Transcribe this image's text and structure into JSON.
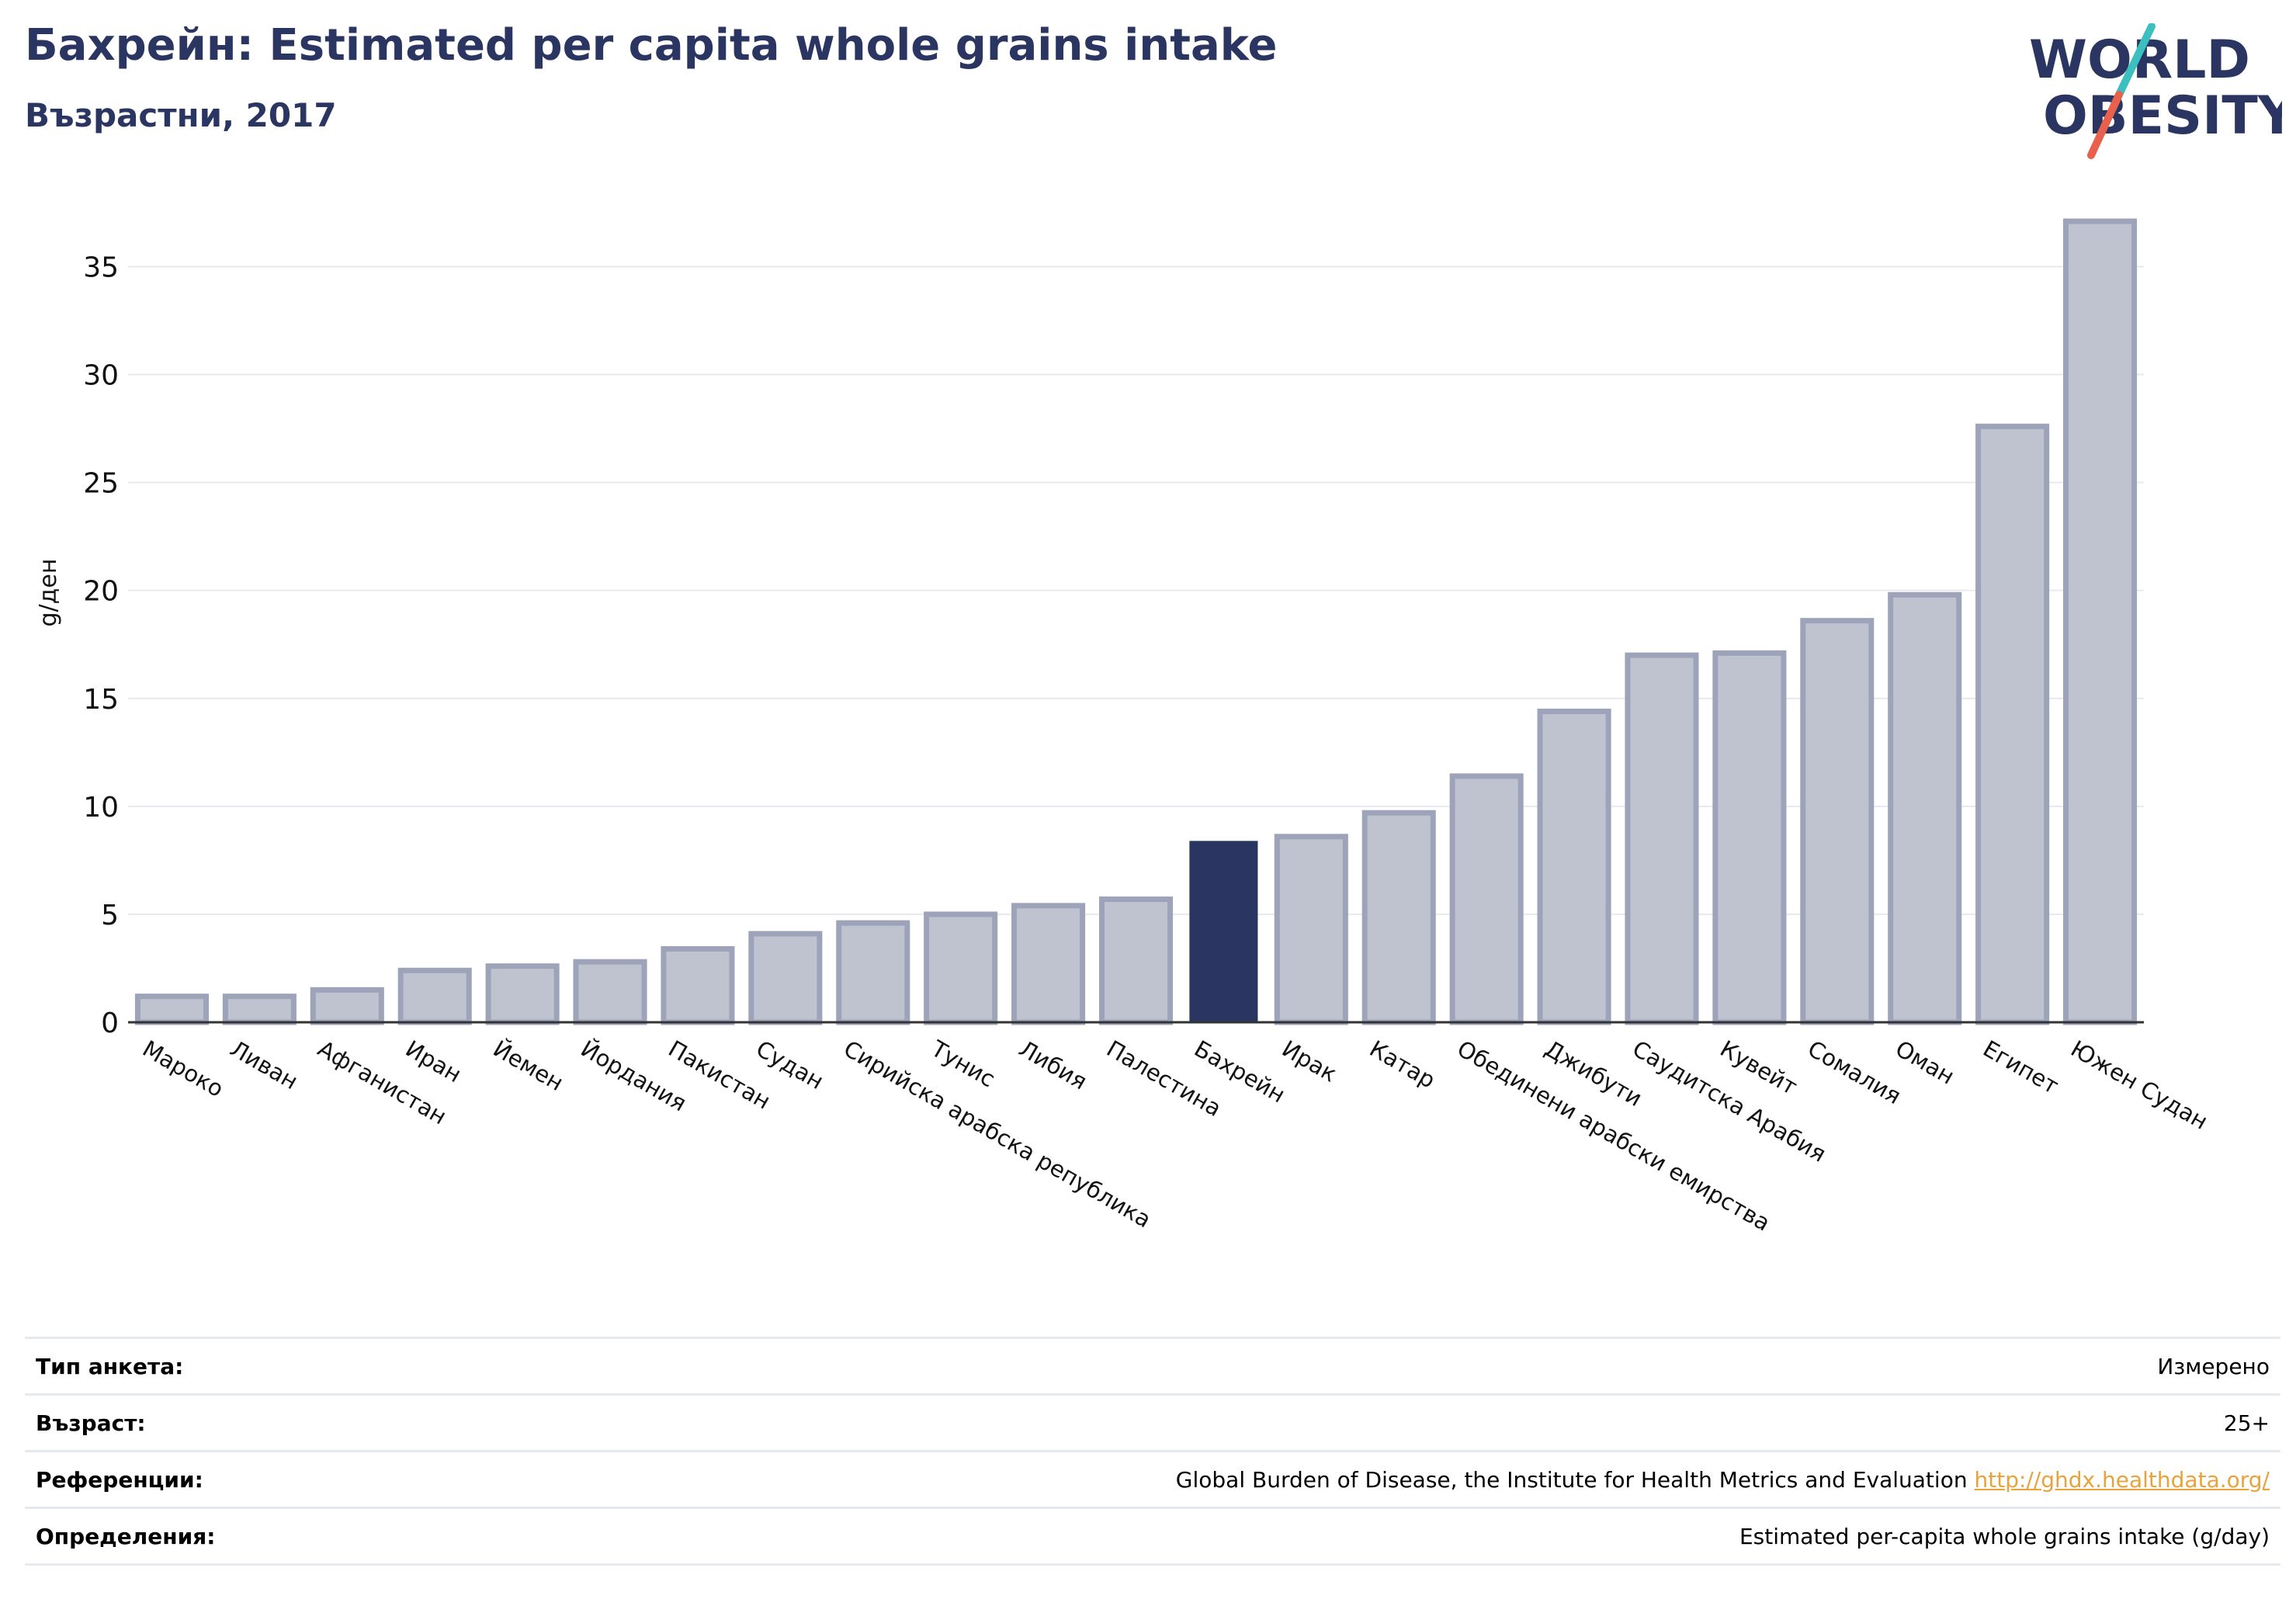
{
  "header": {
    "title": "Бахрейн: Estimated per capita whole grains intake",
    "subtitle": "Възрастни, 2017"
  },
  "logo": {
    "line1": "WORLD",
    "line2": "OBESITY",
    "colors": {
      "text": "#2b3561",
      "slash_top": "#3bbfbf",
      "slash_bottom": "#e8614d"
    }
  },
  "colors": {
    "bar_fill": "#bfc3d0",
    "bar_stroke": "#9da3b8",
    "highlight": "#2b3561",
    "grid": "#e6e9ee",
    "axis": "#333333"
  },
  "chart_data": {
    "type": "bar",
    "ylabel": "g/ден",
    "xlabel": "",
    "ylim": [
      0,
      38
    ],
    "yticks": [
      0,
      5,
      10,
      15,
      20,
      25,
      30,
      35
    ],
    "grid": true,
    "highlight": "Бахрейн",
    "categories": [
      "Мароко",
      "Ливан",
      "Афганистан",
      "Иран",
      "Йемен",
      "Йордания",
      "Пакистан",
      "Судан",
      "Сирийска арабска република",
      "Тунис",
      "Либия",
      "Палестина",
      "Бахрейн",
      "Ирак",
      "Катар",
      "Обединени арабски емирства",
      "Джибути",
      "Саудитска Арабия",
      "Кувейт",
      "Сомалия",
      "Оман",
      "Египет",
      "Южен Судан"
    ],
    "values": [
      1.2,
      1.2,
      1.5,
      2.4,
      2.6,
      2.8,
      3.4,
      4.1,
      4.6,
      5.0,
      5.4,
      5.7,
      8.4,
      8.6,
      9.7,
      11.4,
      14.4,
      17.0,
      17.1,
      18.6,
      19.8,
      27.6,
      37.1
    ]
  },
  "info": {
    "rows": [
      {
        "label": "Тип анкета:",
        "value": "Измерено"
      },
      {
        "label": "Възраст:",
        "value": "25+"
      },
      {
        "label": "Референции:",
        "value": "Global Burden of Disease, the Institute for Health Metrics and Evaluation",
        "link": "http://ghdx.healthdata.org/"
      },
      {
        "label": "Определения:",
        "value": "Estimated per-capita whole grains intake (g/day)"
      }
    ]
  }
}
